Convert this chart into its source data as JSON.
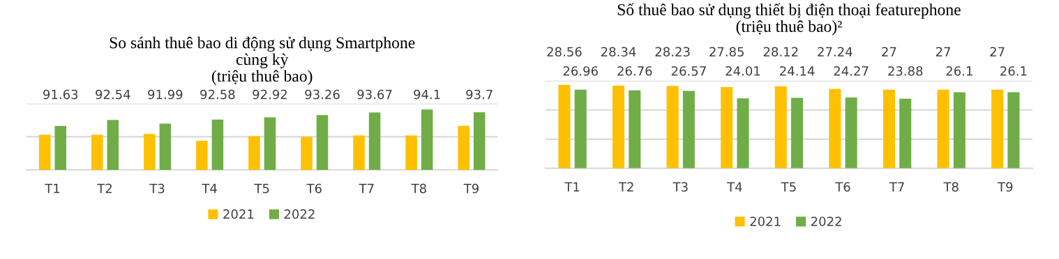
{
  "chart_data": [
    {
      "type": "bar",
      "title": "So sánh thuê bao di động sử dụng Smartphone\ncùng kỳ\n(triệu thuê bao)",
      "categories": [
        "T1",
        "T2",
        "T3",
        "T4",
        "T5",
        "T6",
        "T7",
        "T8",
        "T9"
      ],
      "series": [
        {
          "name": "2021",
          "color": "#ffc000",
          "values": [
            90.3,
            90.3,
            90.4,
            89.4,
            90.1,
            90.0,
            90.2,
            90.2,
            91.65
          ]
        },
        {
          "name": "2022",
          "color": "#70ad47",
          "values": [
            91.63,
            92.54,
            91.99,
            92.58,
            92.92,
            93.26,
            93.67,
            94.1,
            93.7
          ],
          "value_labels": [
            "91.63",
            "92.54",
            "91.99",
            "92.58",
            "92.92",
            "93.26",
            "93.67",
            "94.1",
            "93.7"
          ]
        }
      ],
      "ylim": [
        85,
        95
      ],
      "yticks": [
        {
          "value": 85,
          "label": null
        },
        {
          "value": 90,
          "label": null
        },
        {
          "value": 95,
          "label": null
        }
      ],
      "tick_labels": "x",
      "grid": "y",
      "legend": "bottom"
    },
    {
      "type": "bar",
      "title": "Số thuê bao sử dụng thiết bị điện thoại featurephone\n(triệu thuê bao)²",
      "categories": [
        "T1",
        "T2",
        "T3",
        "T4",
        "T5",
        "T6",
        "T7",
        "T8",
        "T9"
      ],
      "series": [
        {
          "name": "2021",
          "color": "#ffc000",
          "values": [
            28.56,
            28.34,
            28.23,
            27.85,
            28.12,
            27.24,
            27,
            27,
            27
          ]
        },
        {
          "name": "2022",
          "color": "#70ad47",
          "values": [
            26.96,
            26.76,
            26.57,
            24.01,
            24.14,
            24.27,
            23.88,
            26.1,
            26.1
          ]
        }
      ],
      "data_labels": true,
      "ylim": [
        0,
        30
      ],
      "yticks": [
        {
          "value": 0,
          "label": null
        },
        {
          "value": 10,
          "label": null
        },
        {
          "value": 20,
          "label": null
        },
        {
          "value": 30,
          "label": null
        }
      ],
      "tick_labels": "x",
      "grid": "y",
      "legend": "bottom"
    }
  ]
}
